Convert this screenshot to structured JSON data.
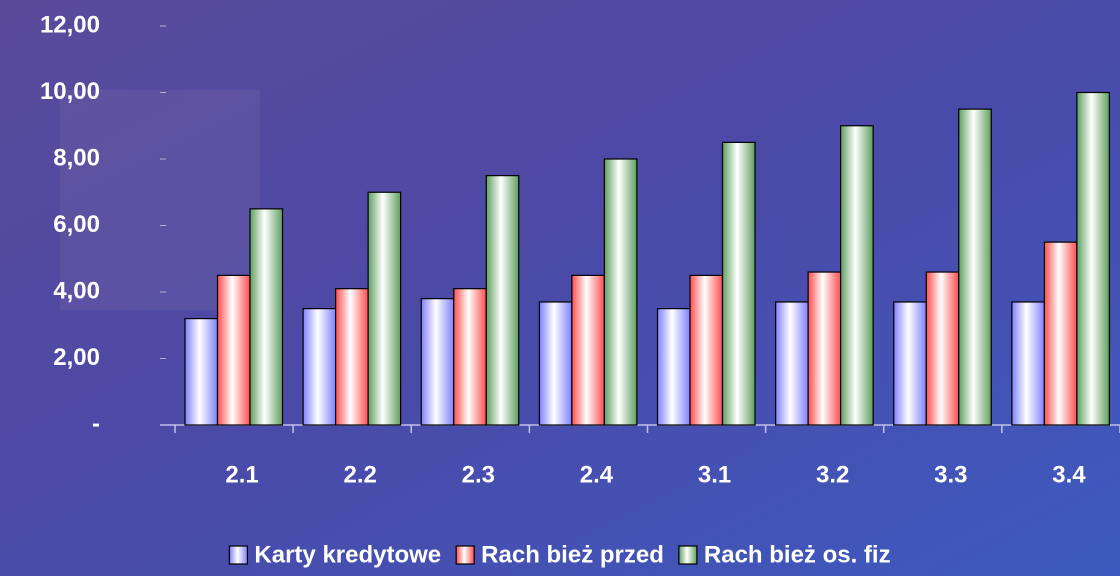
{
  "chart_data": {
    "type": "bar",
    "categories": [
      "2.1",
      "2.2",
      "2.3",
      "2.4",
      "3.1",
      "3.2",
      "3.3",
      "3.4"
    ],
    "series": [
      {
        "name": "Karty kredytowe",
        "color": "#8080ff",
        "values": [
          3.2,
          3.5,
          3.8,
          3.7,
          3.5,
          3.7,
          3.7,
          3.7
        ]
      },
      {
        "name": "Rach bież przed",
        "color": "#ff4d4d",
        "values": [
          4.5,
          4.1,
          4.1,
          4.5,
          4.5,
          4.6,
          4.6,
          5.5
        ]
      },
      {
        "name": "Rach bież os. fiz",
        "color": "#5f9f5f",
        "values": [
          6.5,
          7.0,
          7.5,
          8.0,
          8.5,
          9.0,
          9.5,
          10.0
        ]
      }
    ],
    "ylim": [
      0,
      12
    ],
    "yticks": [
      {
        "value": 0,
        "label": "-"
      },
      {
        "value": 2,
        "label": "2,00"
      },
      {
        "value": 4,
        "label": "4,00"
      },
      {
        "value": 6,
        "label": "6,00"
      },
      {
        "value": 8,
        "label": "8,00"
      },
      {
        "value": 10,
        "label": "10,00"
      },
      {
        "value": 12,
        "label": "12,00"
      }
    ],
    "legend": "bottom"
  }
}
